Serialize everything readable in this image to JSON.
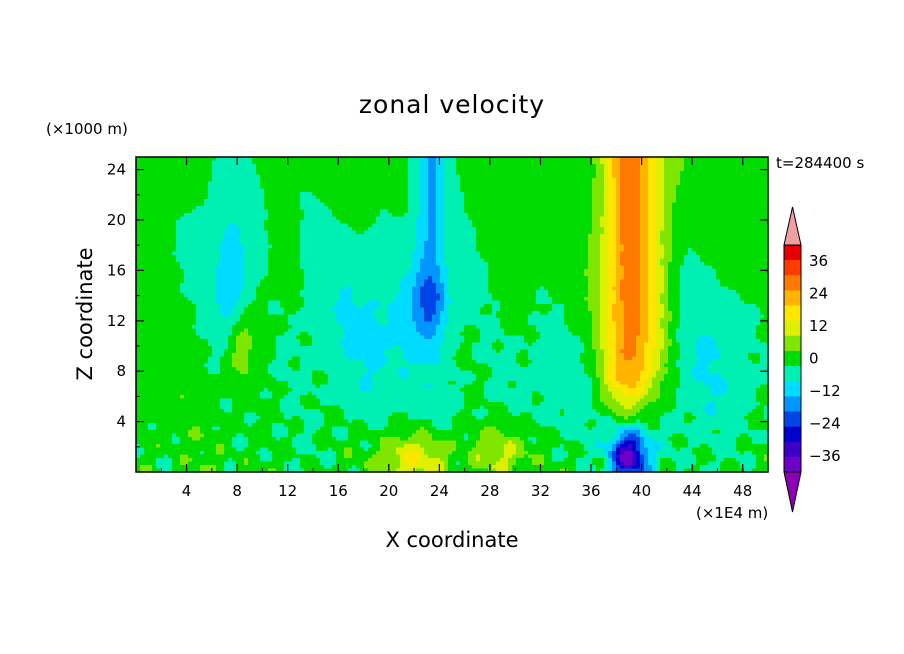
{
  "chart_data": {
    "type": "heatmap",
    "title": "zonal velocity",
    "xlabel": "X coordinate",
    "ylabel": "Z coordinate",
    "x_units": "(×1E4 m)",
    "y_units": "(×1000 m)",
    "time_label": "t=284400 s",
    "xlim": [
      0,
      50
    ],
    "ylim": [
      0,
      25
    ],
    "x_ticks": [
      4,
      8,
      12,
      16,
      20,
      24,
      28,
      32,
      36,
      40,
      44,
      48
    ],
    "y_ticks": [
      4,
      8,
      12,
      16,
      20,
      24
    ],
    "colorbar": {
      "ticks": [
        36,
        24,
        12,
        0,
        -12,
        -24,
        -36
      ],
      "levels": [
        -42,
        -36,
        -30,
        -24,
        -18,
        -12,
        -6,
        0,
        6,
        12,
        18,
        24,
        30,
        36,
        42
      ],
      "colors": [
        "#a000c8",
        "#6e00c8",
        "#3c00c8",
        "#0000d2",
        "#0046e6",
        "#0096ff",
        "#00dcff",
        "#00f0b4",
        "#00dc00",
        "#7ee600",
        "#dcf000",
        "#ffe600",
        "#ffb400",
        "#ff7800",
        "#ff3c00",
        "#e60000",
        "#f0a0a0"
      ],
      "under_color": "#8c00b4",
      "over_color": "#f0a0a0"
    },
    "features": [
      {
        "name": "strong positive jet",
        "x": 39,
        "z_range": [
          4,
          25
        ],
        "peak": 30
      },
      {
        "name": "negative core near surface",
        "x": 39,
        "z_range": [
          0,
          3
        ],
        "peak": -36
      },
      {
        "name": "negative column",
        "x": 23,
        "z_range": [
          10,
          25
        ],
        "peak": -20
      },
      {
        "name": "positive surface patch",
        "x": 22,
        "z_range": [
          0,
          3
        ],
        "peak": 18
      },
      {
        "name": "negative band",
        "x": 7.5,
        "z_range": [
          11,
          18
        ],
        "peak": -15
      }
    ]
  }
}
